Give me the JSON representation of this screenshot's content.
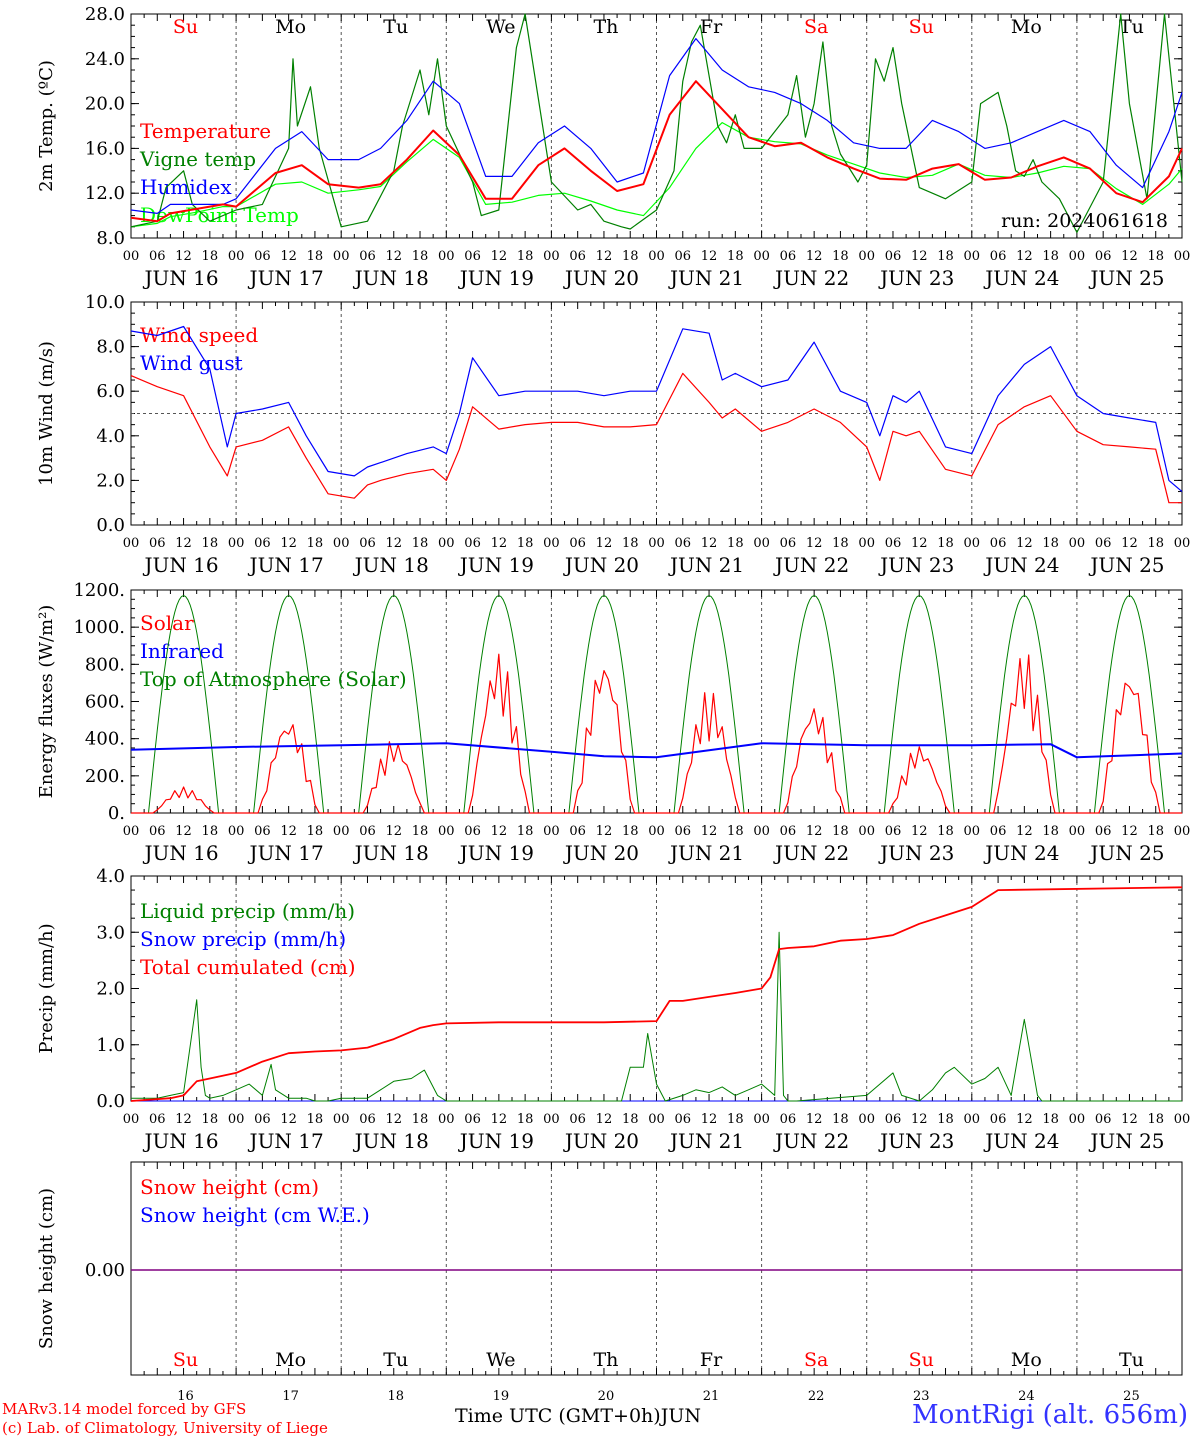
{
  "colors": {
    "red": "#ff0000",
    "green": "#008000",
    "blue": "#0000ff",
    "lime": "#00ff00",
    "purple": "#800080",
    "ink": "#000000",
    "title": "#3333ff"
  },
  "days": [
    "Su",
    "Mo",
    "Tu",
    "We",
    "Th",
    "Fr",
    "Sa",
    "Su",
    "Mo",
    "Tu"
  ],
  "weekend_days": [
    0,
    6,
    7
  ],
  "hour_ticks": [
    "00",
    "06",
    "12",
    "18"
  ],
  "end_tick": "00",
  "date_labels": [
    "JUN 16",
    "JUN 17",
    "JUN 18",
    "JUN 19",
    "JUN 20",
    "JUN 21",
    "JUN 22",
    "JUN 23",
    "JUN 24",
    "JUN 25"
  ],
  "bottom_day_numbers": [
    "16",
    "17",
    "18",
    "19",
    "20",
    "21",
    "22",
    "23",
    "24",
    "25"
  ],
  "run_label": "run: 2024061618",
  "xlabel": "Time UTC (GMT+0h)",
  "xlabel_month": "JUN",
  "footer": {
    "line1": "MARv3.14 model forced by GFS",
    "line2": "(c) Lab. of Climatology, University of Liege",
    "station": "MontRigi (alt. 656m)"
  },
  "chart_data": [
    {
      "type": "line",
      "ylabel": "2m Temp. (ºC)",
      "ylim": [
        8,
        28
      ],
      "yticks": [
        "8.0",
        "12.0",
        "16.0",
        "20.0",
        "24.0",
        "28.0"
      ],
      "ytick_values": [
        8,
        12,
        16,
        20,
        24,
        28
      ],
      "hours": 240,
      "series": [
        {
          "name": "Temperature",
          "color": "#ff0000",
          "x": [
            0,
            6,
            9,
            15,
            21,
            24,
            33,
            39,
            45,
            52,
            57,
            63,
            69,
            75,
            81,
            87,
            93,
            99,
            105,
            111,
            117,
            123,
            129,
            135,
            141,
            147,
            153,
            159,
            165,
            171,
            177,
            183,
            189,
            195,
            201,
            207,
            213,
            219,
            225,
            231,
            237,
            240
          ],
          "y": [
            9.8,
            9.5,
            10.2,
            10.6,
            11.0,
            10.8,
            13.8,
            14.5,
            12.8,
            12.5,
            12.8,
            15.0,
            17.6,
            15.4,
            11.5,
            11.5,
            14.5,
            16.0,
            14.0,
            12.2,
            12.8,
            19.0,
            22.0,
            19.5,
            17.0,
            16.2,
            16.5,
            15.2,
            14.2,
            13.3,
            13.2,
            14.2,
            14.6,
            13.2,
            13.4,
            14.4,
            15.2,
            14.2,
            12.0,
            11.2,
            13.5,
            16.0
          ]
        },
        {
          "name": "Vigne temp",
          "color": "#008000",
          "x": [
            0,
            6,
            8,
            12,
            14,
            18,
            24,
            30,
            36,
            37,
            38,
            41,
            43,
            48,
            54,
            60,
            62,
            66,
            68,
            70,
            72,
            78,
            80,
            84,
            88,
            90,
            96,
            102,
            105,
            108,
            112,
            114,
            120,
            124,
            126,
            128,
            130,
            134,
            136,
            138,
            140,
            144,
            150,
            152,
            154,
            156,
            158,
            160,
            162,
            166,
            168,
            170,
            172,
            174,
            176,
            180,
            186,
            192,
            194,
            198,
            200,
            202,
            204,
            206,
            208,
            212,
            216,
            222,
            226,
            228,
            232,
            236,
            240
          ],
          "y": [
            9.0,
            9.5,
            12.5,
            14.0,
            11.0,
            9.5,
            10.5,
            11.0,
            16.0,
            24.0,
            18.0,
            21.5,
            16.0,
            9.0,
            9.5,
            14.0,
            18.0,
            23.0,
            19.0,
            24.0,
            18.0,
            13.0,
            10.0,
            10.5,
            25.0,
            28.0,
            13.0,
            10.5,
            11.0,
            9.5,
            9.0,
            8.8,
            10.5,
            14.0,
            22.0,
            25.5,
            27.0,
            18.0,
            16.5,
            19.0,
            16.0,
            16.0,
            19.0,
            22.5,
            17.0,
            20.0,
            25.5,
            18.0,
            15.5,
            13.0,
            14.5,
            24.0,
            22.0,
            25.0,
            20.0,
            12.5,
            11.5,
            13.0,
            20.0,
            21.0,
            18.0,
            14.0,
            13.5,
            15.0,
            13.0,
            11.5,
            8.5,
            13.0,
            28.0,
            20.0,
            11.5,
            28.0,
            13.0
          ]
        },
        {
          "name": "Humidex",
          "color": "#0000ff",
          "x": [
            0,
            6,
            9,
            15,
            21,
            24,
            33,
            39,
            45,
            52,
            57,
            63,
            69,
            75,
            81,
            87,
            93,
            99,
            105,
            111,
            117,
            123,
            129,
            135,
            141,
            147,
            153,
            159,
            165,
            171,
            177,
            183,
            189,
            195,
            201,
            207,
            213,
            219,
            225,
            231,
            237,
            240
          ],
          "y": [
            10.5,
            10.2,
            11.0,
            11.0,
            11.0,
            11.5,
            16.0,
            17.5,
            15.0,
            15.0,
            16.0,
            18.5,
            22.0,
            20.0,
            13.5,
            13.5,
            16.5,
            18.0,
            16.0,
            13.0,
            13.8,
            22.5,
            25.8,
            23.0,
            21.5,
            21.0,
            20.0,
            18.5,
            16.5,
            16.0,
            16.0,
            18.5,
            17.5,
            16.0,
            16.5,
            17.5,
            18.5,
            17.5,
            14.5,
            12.5,
            17.5,
            21.0
          ]
        },
        {
          "name": "DewPoint Temp",
          "color": "#00ff00",
          "x": [
            0,
            6,
            9,
            15,
            21,
            24,
            33,
            39,
            45,
            52,
            57,
            63,
            69,
            75,
            81,
            87,
            93,
            99,
            105,
            111,
            117,
            123,
            129,
            135,
            141,
            147,
            153,
            159,
            165,
            171,
            177,
            183,
            189,
            195,
            201,
            207,
            213,
            219,
            225,
            231,
            237,
            240
          ],
          "y": [
            9.0,
            9.3,
            9.9,
            10.3,
            10.8,
            10.8,
            12.8,
            13.0,
            12.0,
            12.3,
            12.6,
            14.8,
            16.8,
            15.2,
            11.0,
            11.2,
            11.8,
            12.0,
            11.3,
            10.5,
            10.0,
            12.5,
            16.0,
            18.3,
            17.0,
            16.6,
            16.4,
            15.4,
            14.6,
            13.8,
            13.4,
            13.6,
            14.6,
            13.6,
            13.4,
            13.8,
            14.4,
            14.2,
            12.4,
            11.0,
            12.8,
            14.2
          ]
        }
      ]
    },
    {
      "type": "line",
      "ylabel": "10m Wind (m/s)",
      "ylim": [
        0,
        10
      ],
      "yticks": [
        "0.0",
        "2.0",
        "4.0",
        "6.0",
        "8.0",
        "10.0"
      ],
      "ytick_values": [
        0,
        2,
        4,
        6,
        8,
        10
      ],
      "reference_line": 5,
      "series": [
        {
          "name": "Wind speed",
          "color": "#ff0000",
          "x": [
            0,
            6,
            12,
            18,
            22,
            24,
            30,
            36,
            40,
            45,
            51,
            54,
            57,
            63,
            69,
            72,
            75,
            78,
            84,
            90,
            96,
            102,
            108,
            114,
            120,
            126,
            132,
            135,
            138,
            144,
            150,
            156,
            162,
            168,
            171,
            174,
            177,
            180,
            186,
            192,
            198,
            204,
            210,
            216,
            222,
            228,
            234,
            237,
            240
          ],
          "y": [
            6.7,
            6.2,
            5.8,
            3.5,
            2.2,
            3.5,
            3.8,
            4.4,
            3.0,
            1.4,
            1.2,
            1.8,
            2.0,
            2.3,
            2.5,
            2.0,
            3.4,
            5.3,
            4.3,
            4.5,
            4.6,
            4.6,
            4.4,
            4.4,
            4.5,
            6.8,
            5.5,
            4.8,
            5.2,
            4.2,
            4.6,
            5.2,
            4.6,
            3.5,
            2.0,
            4.2,
            4.0,
            4.2,
            2.5,
            2.2,
            4.5,
            5.3,
            5.8,
            4.2,
            3.6,
            3.5,
            3.4,
            1.0,
            1.0
          ]
        },
        {
          "name": "Wind gust",
          "color": "#0000ff",
          "x": [
            0,
            6,
            12,
            18,
            22,
            24,
            30,
            36,
            40,
            45,
            51,
            54,
            57,
            63,
            69,
            72,
            75,
            78,
            84,
            90,
            96,
            102,
            108,
            114,
            120,
            126,
            132,
            135,
            138,
            144,
            150,
            156,
            162,
            168,
            171,
            174,
            177,
            180,
            186,
            192,
            198,
            204,
            210,
            216,
            222,
            228,
            234,
            237,
            240
          ],
          "y": [
            8.7,
            8.5,
            8.9,
            7.0,
            3.5,
            5.0,
            5.2,
            5.5,
            4.0,
            2.4,
            2.2,
            2.6,
            2.8,
            3.2,
            3.5,
            3.2,
            5.0,
            7.5,
            5.8,
            6.0,
            6.0,
            6.0,
            5.8,
            6.0,
            6.0,
            8.8,
            8.6,
            6.5,
            6.8,
            6.2,
            6.5,
            8.2,
            6.0,
            5.5,
            4.0,
            5.8,
            5.5,
            6.0,
            3.5,
            3.2,
            5.8,
            7.2,
            8.0,
            5.8,
            5.0,
            4.8,
            4.6,
            2.0,
            1.5
          ]
        }
      ]
    },
    {
      "type": "line",
      "ylabel": "Energy fluxes (W/m²)",
      "ylim": [
        0,
        1200
      ],
      "yticks": [
        "0.",
        "200.",
        "400.",
        "600.",
        "800.",
        "1000.",
        "1200."
      ],
      "ytick_values": [
        0,
        200,
        400,
        600,
        800,
        1000,
        1200
      ],
      "toa_peak": 1170,
      "series": [
        {
          "name": "Solar",
          "color": "#ff0000",
          "day_peaks": [
            140,
            520,
            400,
            870,
            850,
            670,
            600,
            370,
            880,
            790
          ]
        },
        {
          "name": "Infrared",
          "color": "#0000ff",
          "x": [
            0,
            24,
            48,
            72,
            96,
            108,
            120,
            144,
            168,
            192,
            210,
            216,
            240
          ],
          "y": [
            340,
            355,
            365,
            375,
            330,
            305,
            300,
            375,
            365,
            365,
            370,
            300,
            320
          ]
        },
        {
          "name": "Top of Atmosphere (Solar)",
          "color": "#008000"
        }
      ]
    },
    {
      "type": "line",
      "ylabel": "Precip (mm/h)",
      "ylim": [
        0,
        4
      ],
      "yticks": [
        "0.0",
        "1.0",
        "2.0",
        "3.0",
        "4.0"
      ],
      "ytick_values": [
        0,
        1,
        2,
        3,
        4
      ],
      "series": [
        {
          "name": "Liquid precip (mm/h)",
          "color": "#008000",
          "x": [
            0,
            6,
            9,
            12,
            15,
            16,
            17,
            18,
            21,
            24,
            27,
            30,
            32,
            33,
            36,
            40,
            42,
            45,
            48,
            54,
            57,
            60,
            64,
            67,
            70,
            72,
            96,
            112,
            114,
            117,
            118,
            120,
            122,
            126,
            129,
            132,
            135,
            138,
            141,
            144,
            147,
            148,
            149,
            150,
            152,
            168,
            174,
            176,
            180,
            183,
            186,
            188,
            192,
            195,
            198,
            201,
            204,
            207,
            208,
            210,
            240
          ],
          "y": [
            0.05,
            0.05,
            0.1,
            0.15,
            1.8,
            0.6,
            0.1,
            0.05,
            0.1,
            0.2,
            0.3,
            0.1,
            0.65,
            0.2,
            0.05,
            0.05,
            0,
            0,
            0.05,
            0.05,
            0.2,
            0.35,
            0.4,
            0.55,
            0.1,
            0,
            0,
            0,
            0.6,
            0.6,
            1.2,
            0.3,
            0,
            0.1,
            0.2,
            0.15,
            0.25,
            0.1,
            0.2,
            0.3,
            0.1,
            3.0,
            0.1,
            0,
            0,
            0.1,
            0.5,
            0.1,
            0,
            0.2,
            0.5,
            0.6,
            0.3,
            0.4,
            0.6,
            0.1,
            1.45,
            0.1,
            0,
            0,
            0
          ]
        },
        {
          "name": "Snow precip (mm/h)",
          "color": "#0000ff",
          "x": [
            0,
            240
          ],
          "y": [
            0,
            0
          ]
        },
        {
          "name": "Total cumulated (cm)",
          "color": "#ff0000",
          "x": [
            0,
            9,
            12,
            15,
            18,
            24,
            30,
            36,
            42,
            48,
            54,
            60,
            66,
            69,
            72,
            84,
            96,
            108,
            120,
            123,
            126,
            132,
            138,
            144,
            146,
            148,
            150,
            156,
            162,
            168,
            174,
            180,
            186,
            192,
            195,
            198,
            240
          ],
          "y": [
            0,
            0.05,
            0.1,
            0.35,
            0.4,
            0.5,
            0.7,
            0.85,
            0.88,
            0.9,
            0.95,
            1.1,
            1.3,
            1.35,
            1.38,
            1.4,
            1.4,
            1.4,
            1.42,
            1.78,
            1.78,
            1.85,
            1.92,
            2.0,
            2.2,
            2.7,
            2.72,
            2.75,
            2.85,
            2.88,
            2.95,
            3.15,
            3.3,
            3.45,
            3.6,
            3.75,
            3.8
          ]
        }
      ]
    },
    {
      "type": "line",
      "ylabel": "Snow height (cm)",
      "yticks": [
        "0.00"
      ],
      "series": [
        {
          "name": "Snow height (cm)",
          "color": "#ff0000",
          "x": [
            0,
            240
          ],
          "y": [
            0,
            0
          ]
        },
        {
          "name": "Snow height (cm W.E.)",
          "color": "#0000ff",
          "x": [
            0,
            240
          ],
          "y": [
            0,
            0
          ]
        }
      ]
    }
  ]
}
